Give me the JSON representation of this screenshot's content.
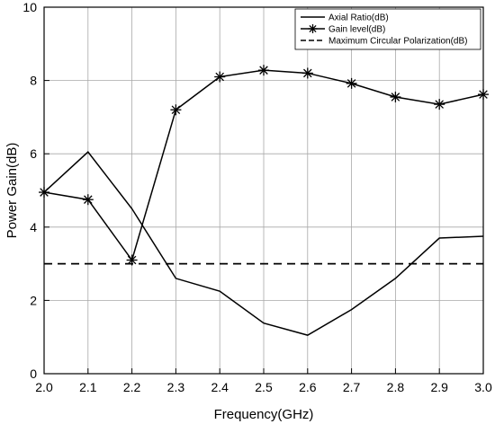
{
  "chart_data": {
    "type": "line",
    "xlabel": "Frequency(GHz)",
    "ylabel": "Power Gain(dB)",
    "xlim": [
      2.0,
      3.0
    ],
    "ylim": [
      0,
      10
    ],
    "x_ticks": [
      "2.0",
      "2.1",
      "2.2",
      "2.3",
      "2.4",
      "2.5",
      "2.6",
      "2.7",
      "2.8",
      "2.9",
      "3.0"
    ],
    "y_ticks": [
      "0",
      "2",
      "4",
      "6",
      "8",
      "10"
    ],
    "grid": true,
    "legend_position": "top-right",
    "series": [
      {
        "name": "Axial Ratio(dB)",
        "style": "solid",
        "marker": "none",
        "x": [
          2.0,
          2.1,
          2.2,
          2.3,
          2.4,
          2.5,
          2.6,
          2.7,
          2.8,
          2.9,
          3.0
        ],
        "y": [
          4.95,
          6.05,
          4.5,
          2.6,
          2.25,
          1.38,
          1.05,
          1.75,
          2.6,
          3.7,
          3.75
        ]
      },
      {
        "name": "Gain level(dB)",
        "style": "solid",
        "marker": "asterisk",
        "x": [
          2.0,
          2.1,
          2.2,
          2.3,
          2.4,
          2.5,
          2.6,
          2.7,
          2.8,
          2.9,
          3.0
        ],
        "y": [
          4.95,
          4.75,
          3.1,
          7.2,
          8.1,
          8.28,
          8.2,
          7.92,
          7.55,
          7.35,
          7.62
        ]
      },
      {
        "name": "Maximum Circular Polarization(dB)",
        "style": "dashed",
        "marker": "none",
        "x": [
          2.0,
          3.0
        ],
        "y": [
          3.0,
          3.0
        ]
      }
    ]
  }
}
